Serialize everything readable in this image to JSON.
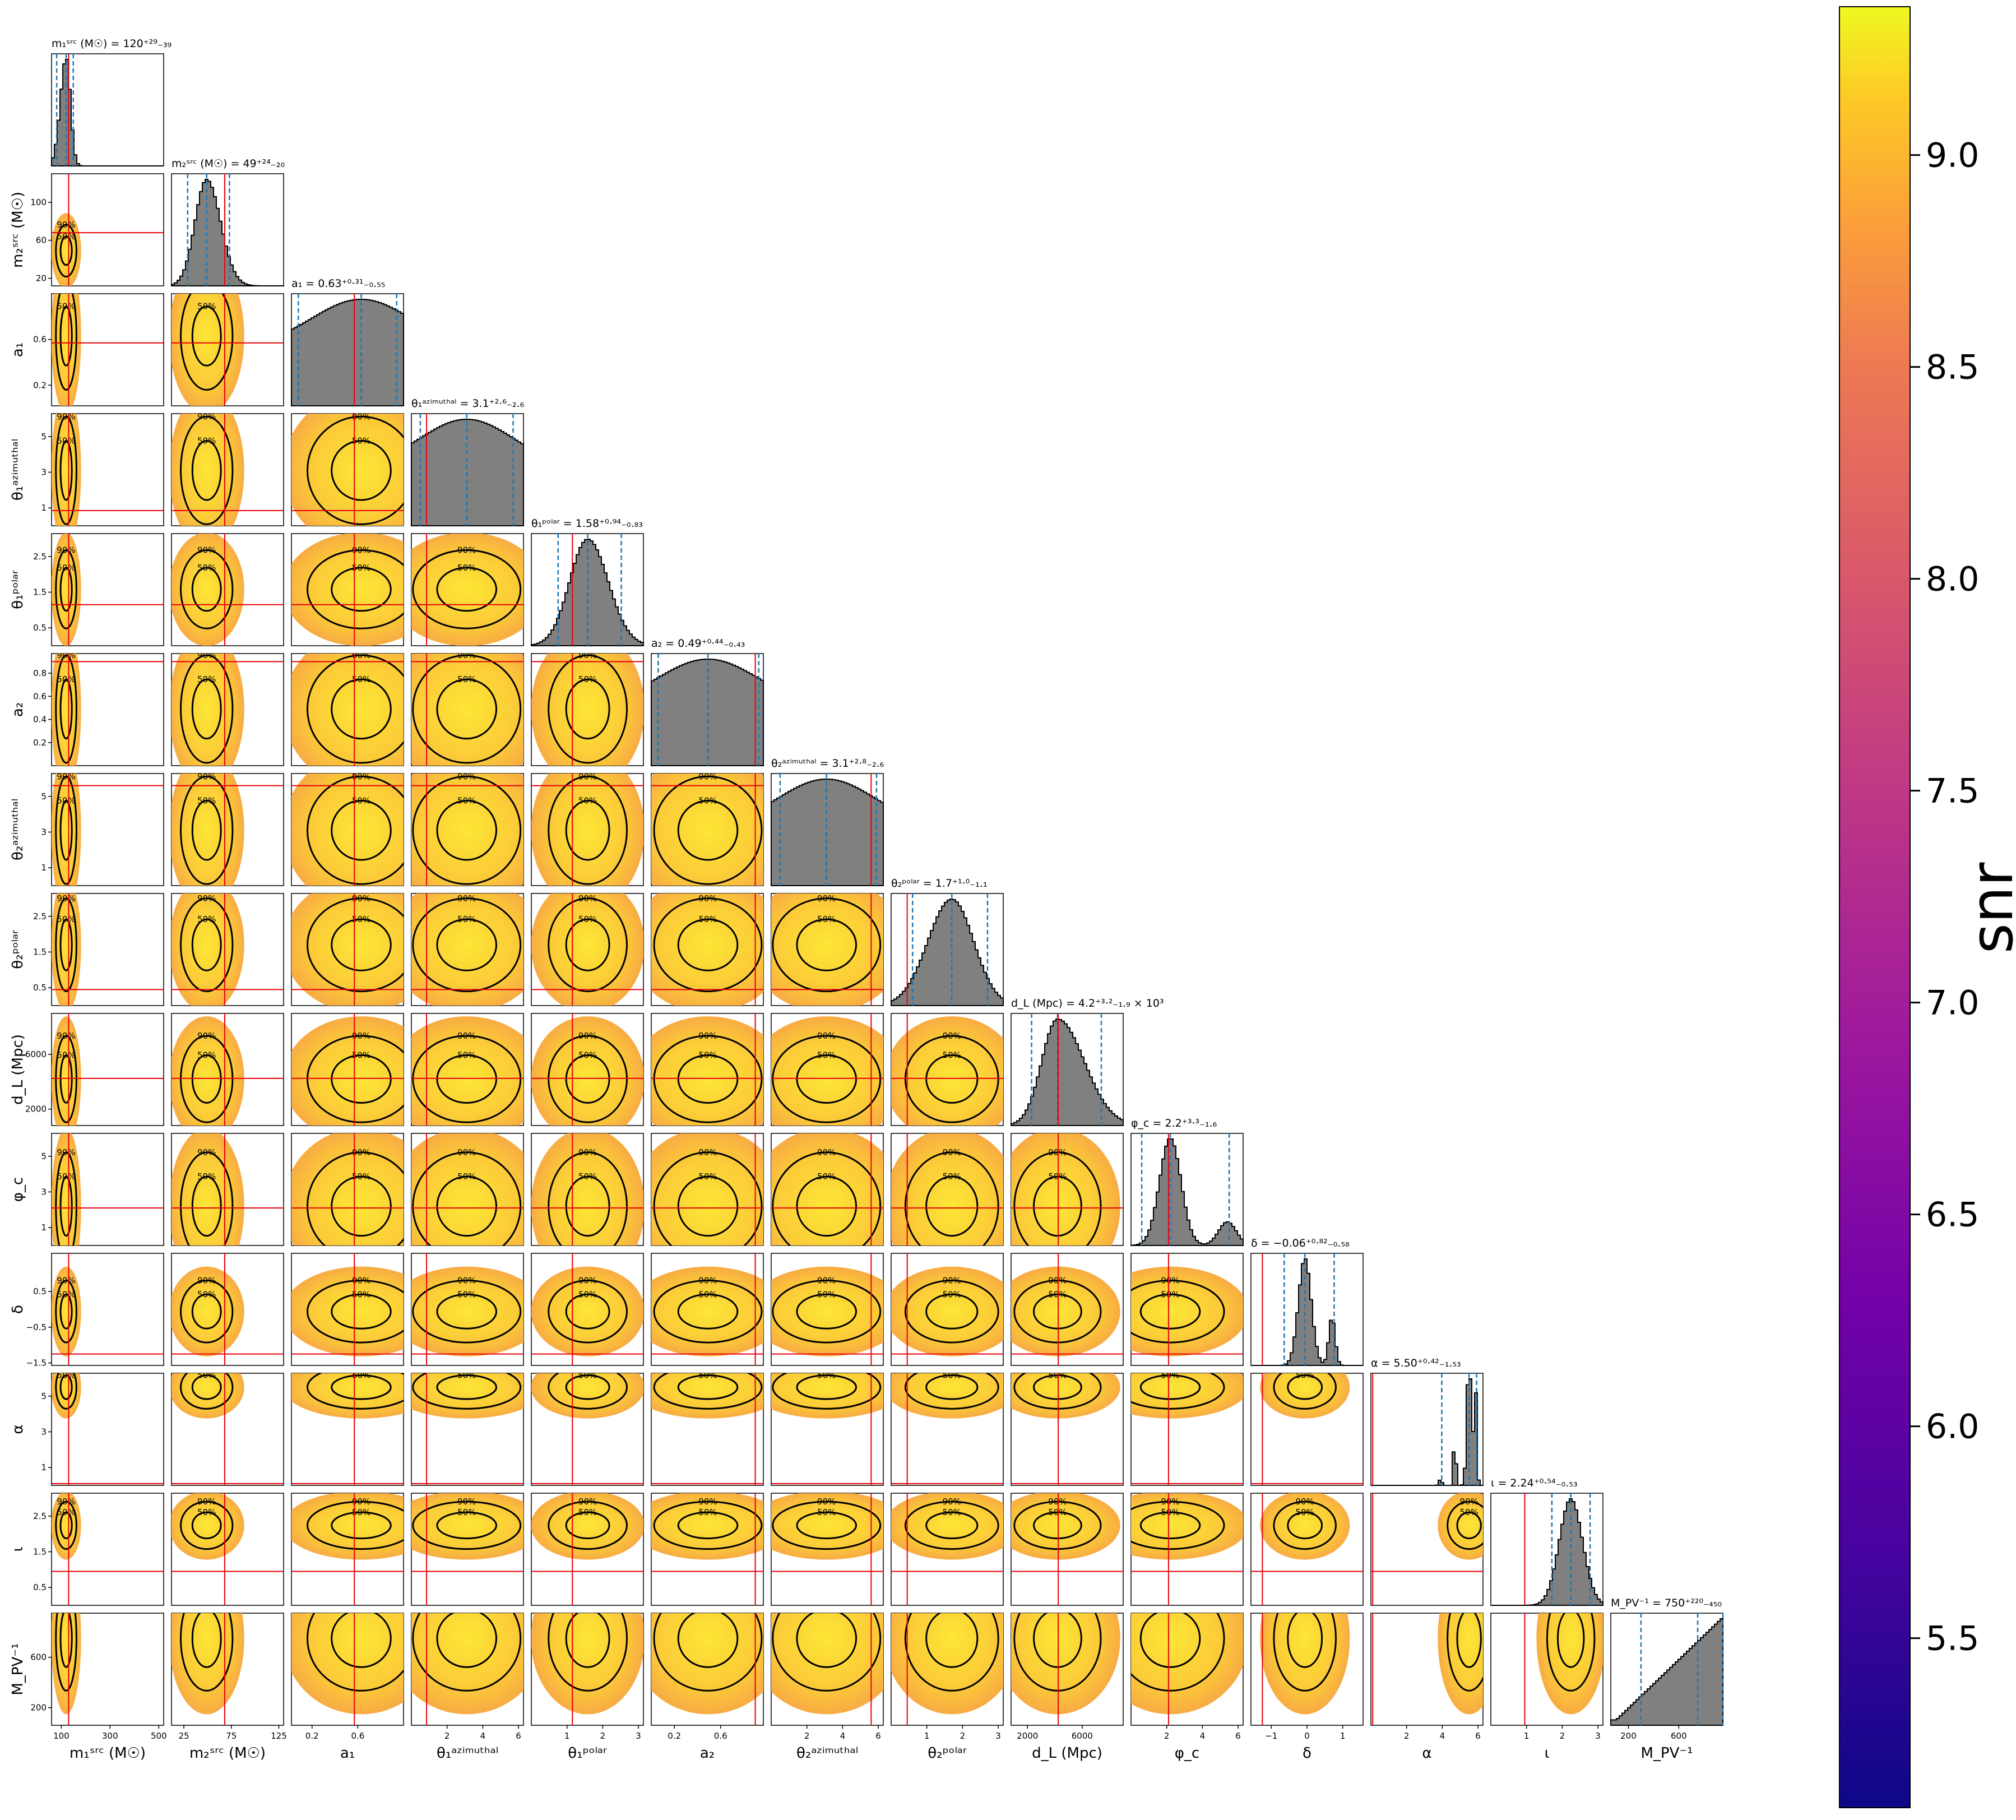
{
  "chart_data": {
    "type": "corner",
    "colorbar": {
      "label": "snr",
      "range": [
        5.1,
        9.35
      ],
      "ticks": [
        "5.5",
        "6.0",
        "6.5",
        "7.0",
        "7.5",
        "8.0",
        "8.5",
        "9.0"
      ],
      "colormap": "plasma"
    },
    "contour_levels": [
      "50%",
      "90%"
    ],
    "colors": {
      "histogram_fill": "#808080",
      "quantile_line": "#1f77b4",
      "truth_line": "#e8000b",
      "contour": "#000000"
    },
    "parameters": [
      {
        "id": "m1",
        "axis_label": "m₁ˢʳᶜ (M☉)",
        "title": "m₁ˢʳᶜ (M☉) = 120⁺²⁹₋₃₉",
        "range": [
          60,
          520
        ],
        "ticks": [
          "100",
          "300",
          "500"
        ],
        "truth": 130,
        "median": 120,
        "err_plus": 29,
        "err_minus": 39
      },
      {
        "id": "m2",
        "axis_label": "m₂ˢʳᶜ (M☉)",
        "title": "m₂ˢʳᶜ (M☉) = 49⁺²⁴₋₂₀",
        "range": [
          12,
          130
        ],
        "ticks": [
          "25",
          "75",
          "125"
        ],
        "y_ticks": [
          "20",
          "60",
          "100"
        ],
        "truth": 68,
        "median": 49,
        "err_plus": 24,
        "err_minus": 20
      },
      {
        "id": "a1",
        "axis_label": "a₁",
        "title": "a₁ = 0.63⁺⁰·³¹₋₀.₅₅",
        "range": [
          0.02,
          1.0
        ],
        "ticks": [
          "0.2",
          "0.6"
        ],
        "y_ticks": [
          "0.2",
          "0.6"
        ],
        "truth": 0.57,
        "median": 0.63,
        "err_plus": 0.31,
        "err_minus": 0.55
      },
      {
        "id": "theta1az",
        "axis_label": "θ₁ᵃᶻⁱᵐᵘᵗʰᵃˡ",
        "title": "θ₁ᵃᶻⁱᵐᵘᵗʰᵃˡ = 3.1⁺²·⁶₋₂.₆",
        "range": [
          0,
          6.28
        ],
        "ticks": [
          "2",
          "4",
          "6"
        ],
        "y_ticks": [
          "1",
          "3",
          "5"
        ],
        "truth": 0.85,
        "median": 3.1,
        "err_plus": 2.6,
        "err_minus": 2.6
      },
      {
        "id": "theta1pol",
        "axis_label": "θ₁ᵖᵒˡᵃʳ",
        "title": "θ₁ᵖᵒˡᵃʳ = 1.58⁺⁰·⁹⁴₋₀.₈₃",
        "range": [
          0,
          3.14
        ],
        "ticks": [
          "1",
          "2",
          "3"
        ],
        "y_ticks": [
          "0.5",
          "1.5",
          "2.5"
        ],
        "truth": 1.15,
        "median": 1.58,
        "err_plus": 0.94,
        "err_minus": 0.83
      },
      {
        "id": "a2",
        "axis_label": "a₂",
        "title": "a₂ = 0.49⁺⁰·⁴⁴₋₀.₄₃",
        "range": [
          0.0,
          0.97
        ],
        "ticks": [
          "0.2",
          "0.6"
        ],
        "y_ticks": [
          "0.2",
          "0.4",
          "0.6",
          "0.8"
        ],
        "truth": 0.9,
        "median": 0.49,
        "err_plus": 0.44,
        "err_minus": 0.43
      },
      {
        "id": "theta2az",
        "axis_label": "θ₂ᵃᶻⁱᵐᵘᵗʰᵃˡ",
        "title": "θ₂ᵃᶻⁱᵐᵘᵗʰᵃˡ = 3.1⁺²·⁸₋₂.₆",
        "range": [
          0,
          6.28
        ],
        "ticks": [
          "2",
          "4",
          "6"
        ],
        "y_ticks": [
          "1",
          "3",
          "5"
        ],
        "truth": 5.6,
        "median": 3.1,
        "err_plus": 2.8,
        "err_minus": 2.6
      },
      {
        "id": "theta2pol",
        "axis_label": "θ₂ᵖᵒˡᵃʳ",
        "title": "θ₂ᵖᵒˡᵃʳ = 1.7⁺¹·⁰₋₁.₁",
        "range": [
          0,
          3.14
        ],
        "ticks": [
          "1",
          "2",
          "3"
        ],
        "y_ticks": [
          "0.5",
          "1.5",
          "2.5"
        ],
        "truth": 0.45,
        "median": 1.7,
        "err_plus": 1.0,
        "err_minus": 1.1
      },
      {
        "id": "dL",
        "axis_label": "d_L (Mpc)",
        "title": "d_L (Mpc) = 4.2⁺³·²₋₁.₉ × 10³",
        "range": [
          800,
          9000
        ],
        "ticks": [
          "2000",
          "6000"
        ],
        "y_ticks": [
          "2000",
          "6000"
        ],
        "truth": 4250,
        "median": 4200,
        "err_plus": 3200,
        "err_minus": 1900
      },
      {
        "id": "phic",
        "axis_label": "φ_c",
        "title": "φ_c = 2.2⁺³·³₋₁.₆",
        "range": [
          0,
          6.28
        ],
        "ticks": [
          "2",
          "4",
          "6"
        ],
        "y_ticks": [
          "1",
          "3",
          "5"
        ],
        "truth": 2.1,
        "median": 2.2,
        "err_plus": 3.3,
        "err_minus": 1.6
      },
      {
        "id": "delta",
        "axis_label": "δ",
        "title": "δ = −0.06⁺⁰·⁸²₋₀.₅₈",
        "range": [
          -1.57,
          1.57
        ],
        "ticks": [
          "−1",
          "0",
          "1"
        ],
        "y_ticks": [
          "−1.5",
          "−0.5",
          "0.5"
        ],
        "truth": -1.25,
        "median": -0.06,
        "err_plus": 0.82,
        "err_minus": 0.58
      },
      {
        "id": "alpha",
        "axis_label": "α",
        "title": "α = 5.50⁺⁰·⁴²₋₁.₅₃",
        "range": [
          0,
          6.28
        ],
        "ticks": [
          "2",
          "4",
          "6"
        ],
        "y_ticks": [
          "1",
          "3",
          "5"
        ],
        "truth": 0.1,
        "median": 5.5,
        "err_plus": 0.42,
        "err_minus": 1.53
      },
      {
        "id": "iota",
        "axis_label": "ι",
        "title": "ι = 2.24⁺⁰·⁵⁴₋₀.₅₃",
        "range": [
          0,
          3.14
        ],
        "ticks": [
          "1",
          "2",
          "3"
        ],
        "y_ticks": [
          "0.5",
          "1.5",
          "2.5"
        ],
        "truth": 0.95,
        "median": 2.24,
        "err_plus": 0.54,
        "err_minus": 0.53
      },
      {
        "id": "MPV",
        "axis_label": "M_PV⁻¹",
        "title": "M_PV⁻¹ = 750⁺²²⁰₋₄₅₀",
        "range": [
          60,
          950
        ],
        "ticks": [
          "200",
          "600"
        ],
        "y_ticks": [
          "200",
          "600"
        ],
        "truth": null,
        "median": 750,
        "err_plus": 220,
        "err_minus": 450
      }
    ]
  }
}
